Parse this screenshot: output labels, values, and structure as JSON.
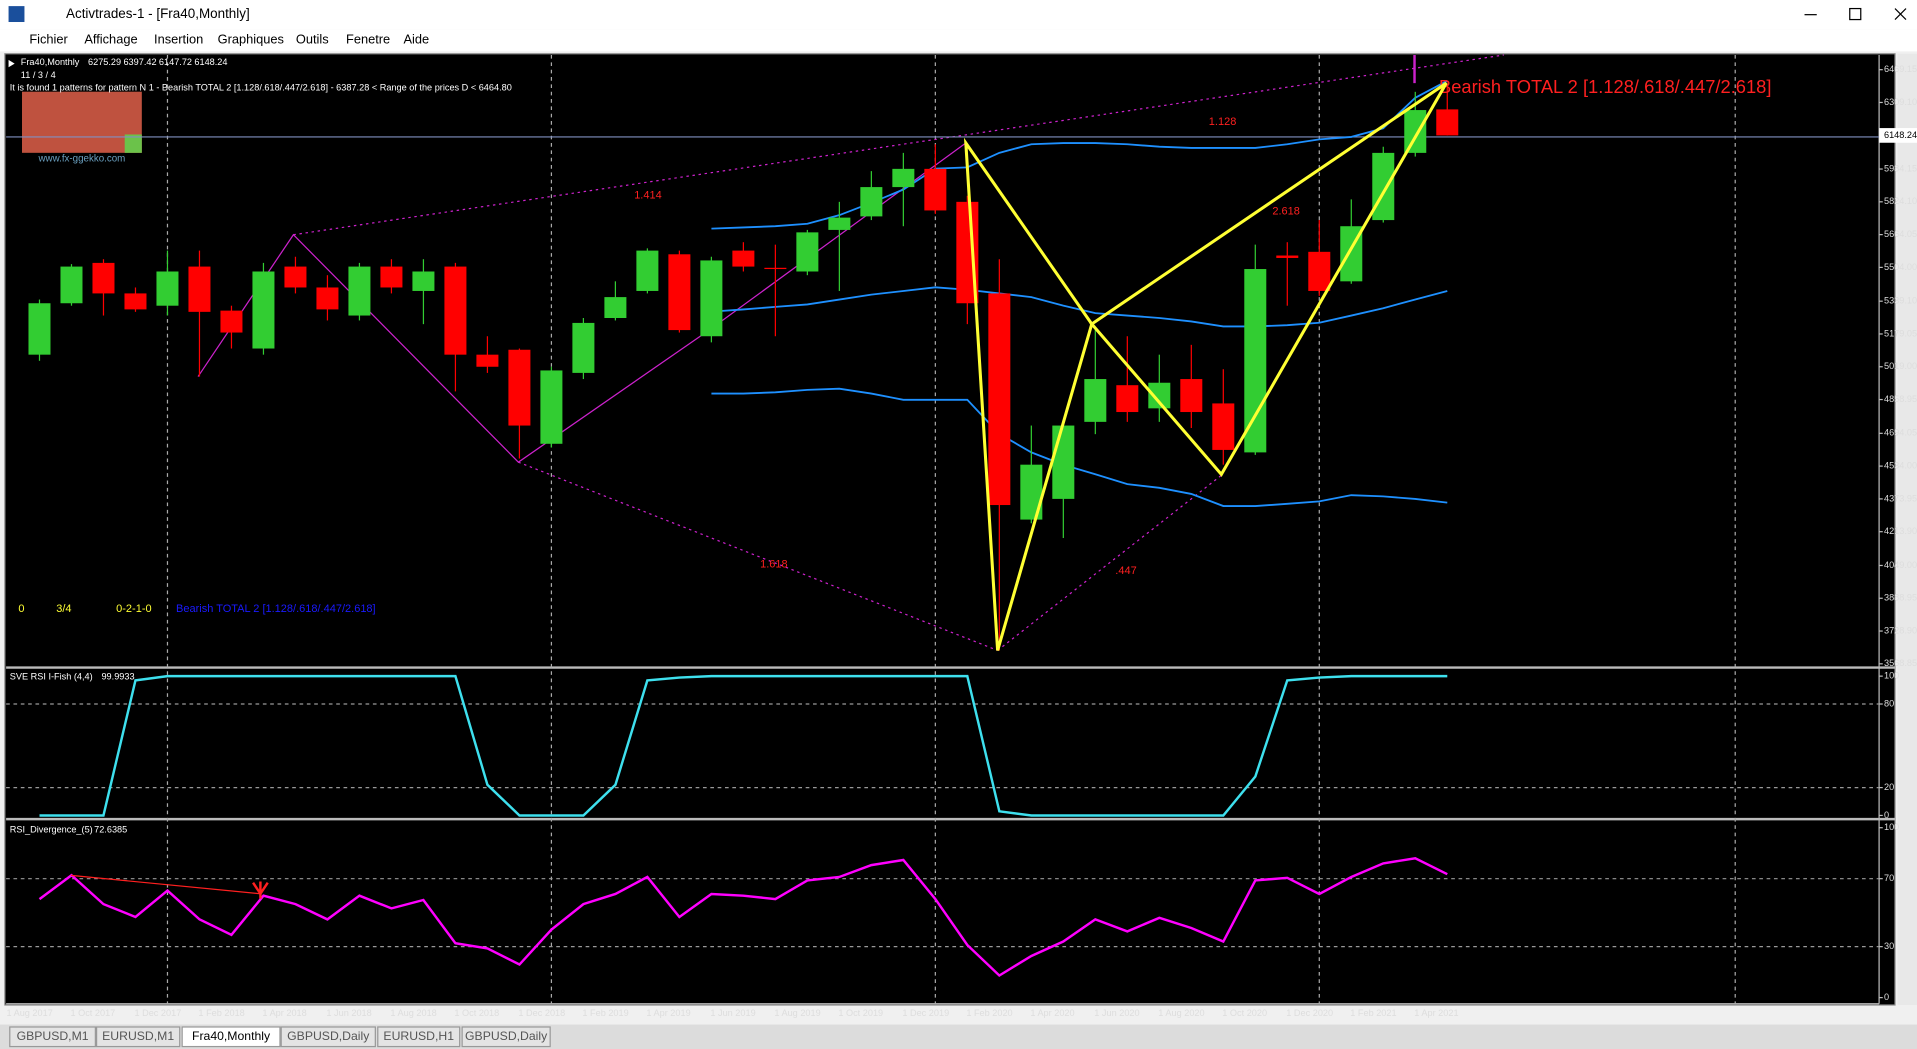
{
  "window": {
    "title": "Activtrades-1 - [Fra40,Monthly]"
  },
  "menu": [
    "Fichier",
    "Affichage",
    "Insertion",
    "Graphiques",
    "Outils",
    "Fenetre",
    "Aide"
  ],
  "tabs": [
    "GBPUSD,M1",
    "EURUSD,M1",
    "Fra40,Monthly",
    "GBPUSD,Daily",
    "EURUSD,H1",
    "GBPUSD,Daily"
  ],
  "chart_data": [
    {
      "type": "candlestick",
      "title": "Fra40,Monthly",
      "info": "It is found 1 patterns    for pattern N 1 - Bearish TOTAL 2 [1.128/.618/.447/2.618] - 6387.28 < Range of the prices D < 6464.80",
      "counter": "11 / 3 / 4",
      "logo": "www.fx-ggekko.com",
      "categories": [
        "1 Aug 2017",
        null,
        "1 Oct 2017",
        null,
        "1 Dec 2017",
        null,
        "1 Feb 2018",
        null,
        "1 Apr 2018",
        null,
        "1 Jun 2018",
        null,
        "1 Aug 2018",
        null,
        "1 Oct 2018",
        null,
        "1 Dec 2018",
        null,
        "1 Feb 2019",
        null,
        "1 Apr 2019",
        null,
        "1 Jun 2019",
        null,
        "1 Aug 2019",
        null,
        "1 Oct 2019",
        null,
        "1 Dec 2019",
        null,
        "1 Feb 2020",
        null,
        "1 Apr 2020",
        null,
        "1 Jun 2020",
        null,
        "1 Aug 2020",
        null,
        "1 Oct 2020",
        null,
        "1 Dec 2020",
        null,
        "1 Feb 2021",
        null,
        "1 Apr 2021"
      ],
      "open": [
        5078,
        5329,
        5526,
        5377,
        5317,
        5508,
        5293,
        5108,
        5508,
        5406,
        5269,
        5508,
        5389,
        5508,
        5078,
        5102,
        4643,
        4989,
        5257,
        5389,
        5568,
        5168,
        5586,
        5502,
        5484,
        5687,
        5753,
        5896,
        5985,
        5824,
        5377,
        4273,
        4374,
        4750,
        4929,
        4816,
        4959,
        4840,
        4601,
        5562,
        5580,
        5436,
        5735,
        6063,
        6275.29
      ],
      "high": [
        5347,
        5520,
        5544,
        5406,
        5586,
        5586,
        5317,
        5526,
        5556,
        5466,
        5526,
        5544,
        5544,
        5526,
        5168,
        5108,
        5019,
        5257,
        5436,
        5597,
        5586,
        5556,
        5627,
        5615,
        5687,
        5824,
        5974,
        6063,
        6105,
        5854,
        5544,
        4732,
        4750,
        5198,
        5168,
        5078,
        5126,
        5007,
        5615,
        5627,
        5735,
        5836,
        6093,
        6361,
        6397.42
      ],
      "low": [
        5048,
        5317,
        5269,
        5287,
        5269,
        4971,
        5108,
        5078,
        5377,
        5245,
        5245,
        5377,
        5227,
        4899,
        4989,
        4571,
        4625,
        4959,
        5245,
        5377,
        5186,
        5138,
        5484,
        5168,
        5466,
        5389,
        5735,
        5705,
        5765,
        5227,
        3634,
        4255,
        4183,
        4690,
        4750,
        4750,
        4720,
        4541,
        4589,
        5317,
        5365,
        5424,
        5723,
        6045,
        6147.72
      ],
      "close": [
        5329,
        5508,
        5377,
        5299,
        5484,
        5287,
        5186,
        5484,
        5406,
        5299,
        5508,
        5406,
        5484,
        5078,
        5019,
        4732,
        5001,
        5233,
        5359,
        5586,
        5198,
        5538,
        5508,
        5496,
        5675,
        5747,
        5896,
        5985,
        5782,
        5329,
        4344,
        4541,
        4732,
        4959,
        4798,
        4941,
        4798,
        4613,
        5496,
        5550,
        5389,
        5705,
        6063,
        6272,
        6148.24
      ],
      "up_color": "#32cd32",
      "down_color": "#ff0000",
      "bands": {
        "color": "#1e90ff",
        "upper": [
          null,
          null,
          null,
          null,
          null,
          null,
          null,
          null,
          null,
          null,
          null,
          null,
          null,
          null,
          null,
          null,
          null,
          null,
          null,
          null,
          null,
          5693,
          5699,
          5705,
          5717,
          5759,
          5819,
          5884,
          5986,
          5992,
          6063,
          6105,
          6111,
          6111,
          6105,
          6093,
          6087,
          6087,
          6087,
          6105,
          6129,
          6141,
          6183,
          6332,
          6415
        ],
        "middle": [
          null,
          null,
          null,
          null,
          null,
          null,
          null,
          null,
          null,
          null,
          null,
          null,
          null,
          null,
          null,
          null,
          null,
          null,
          null,
          null,
          null,
          5288,
          5299,
          5311,
          5323,
          5347,
          5371,
          5389,
          5407,
          5395,
          5377,
          5359,
          5317,
          5281,
          5269,
          5257,
          5240,
          5216,
          5216,
          5222,
          5234,
          5269,
          5305,
          5347,
          5389
        ],
        "lower": [
          null,
          null,
          null,
          null,
          null,
          null,
          null,
          null,
          null,
          null,
          null,
          null,
          null,
          null,
          null,
          null,
          null,
          null,
          null,
          null,
          null,
          4888,
          4888,
          4894,
          4906,
          4912,
          4888,
          4858,
          4858,
          4858,
          4691,
          4601,
          4541,
          4494,
          4446,
          4428,
          4398,
          4339,
          4339,
          4350,
          4362,
          4392,
          4386,
          4374,
          4356
        ]
      },
      "ylim": [
        3556.7,
        6540.7
      ],
      "yticks": [
        6469.15,
        {
          "value": 6309.1,
          "label": "6309.10"
        },
        5984.15,
        {
          "value": 5824.1,
          "label": "5824.10"
        },
        5664.05,
        {
          "value": 5504,
          "label": "5504.00"
        },
        {
          "value": 5339.1,
          "label": "5339.10"
        },
        5179.05,
        {
          "value": 5019,
          "label": "5019.00"
        },
        4858.95,
        4694.05,
        {
          "value": 4534,
          "label": "4534.00"
        },
        4373.95,
        {
          "value": 4213.9,
          "label": "4213.90"
        },
        {
          "value": 4049,
          "label": "4049.00"
        },
        3888.95,
        {
          "value": 3728.9,
          "label": "3728.90"
        },
        3568.85
      ],
      "annotations": [
        "1.414",
        "1.128",
        "2.618",
        "1.618",
        ".447"
      ],
      "pattern_title": "Bearish TOTAL 2 [1.128/.618/.447/2.618]",
      "status": [
        "0",
        "3/4",
        "0-2-1-0"
      ],
      "status_pattern": "Bearish TOTAL 2 [1.128/.618/.447/2.618]"
    },
    {
      "type": "line",
      "title": "SVE RSI I-Fish (4,4)",
      "color": "#3ee0ee",
      "values": [
        0,
        0,
        0,
        97,
        100,
        100,
        100,
        100,
        100,
        100,
        100,
        100,
        100,
        100,
        22,
        0,
        0,
        0,
        22,
        97,
        99,
        100,
        100,
        100,
        100,
        100,
        100,
        100,
        100,
        100,
        3,
        0,
        0,
        0,
        0,
        0,
        0,
        0,
        28,
        97,
        99,
        100,
        100,
        100,
        99.9933
      ],
      "ylim": [
        -0.9,
        105.3
      ],
      "yticks": [
        100,
        80,
        20,
        0
      ],
      "grid": true
    },
    {
      "type": "line",
      "title": "RSI_Divergence_(5)",
      "color": "#ff00ff",
      "values": [
        58,
        72,
        55,
        47.5,
        63,
        46,
        37,
        60,
        55,
        46,
        60,
        52.5,
        57.5,
        32,
        29,
        19.5,
        40,
        55,
        61,
        71,
        47.5,
        61,
        60,
        58,
        69,
        71,
        78,
        81,
        58,
        31,
        13,
        24.5,
        33,
        46,
        39,
        47,
        41,
        33,
        69,
        70.5,
        61,
        71,
        79,
        82,
        72.6385
      ],
      "ylim": [
        -2.9,
        103.6
      ],
      "yticks": [
        100,
        70,
        30,
        0
      ],
      "grid": true
    }
  ]
}
